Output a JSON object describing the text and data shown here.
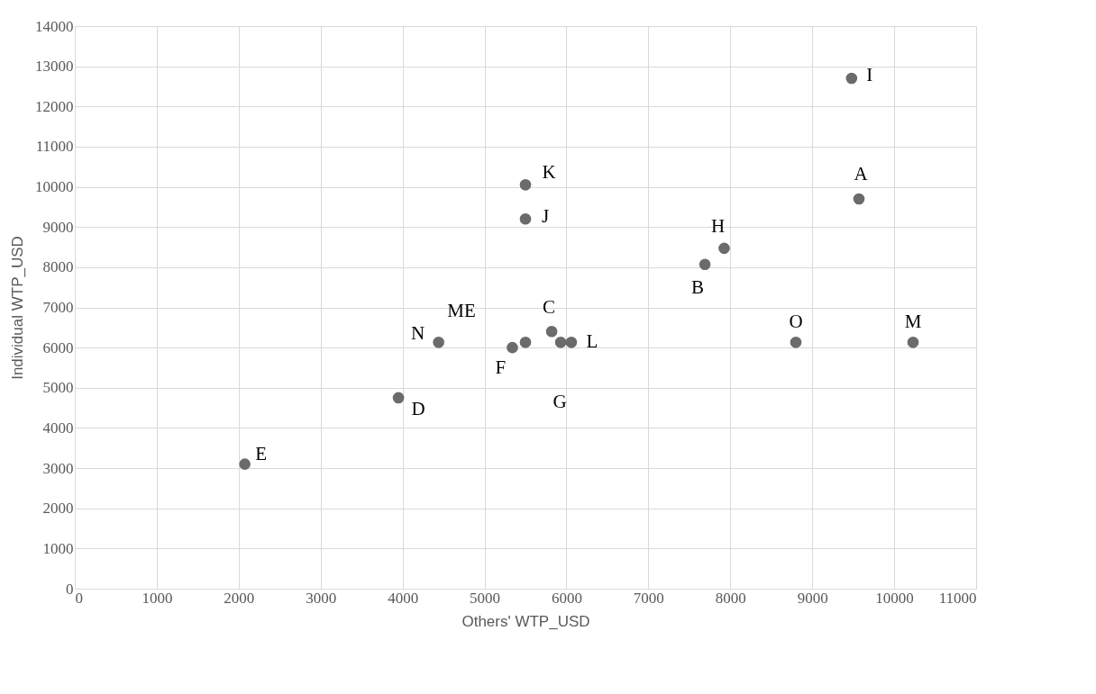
{
  "chart_data": {
    "type": "scatter",
    "xlabel": "Others' WTP_USD",
    "ylabel": "Individual WTP_USD",
    "x": [
      9480,
      9570,
      5500,
      5500,
      7925,
      7690,
      5820,
      4440,
      5500,
      5340,
      5930,
      6060,
      8800,
      10230,
      3950,
      2075
    ],
    "series": [
      {
        "color": "#6b6b6b",
        "values": [
          12700,
          9700,
          10050,
          9200,
          8470,
          8070,
          6400,
          6130,
          6130,
          6000,
          6130,
          6130,
          6130,
          6130,
          4750,
          3100
        ]
      }
    ],
    "xlim": [
      0,
      11000
    ],
    "xticks": [
      0,
      1000,
      2000,
      3000,
      4000,
      5000,
      6000,
      7000,
      8000,
      9000,
      10000,
      11000
    ],
    "ylim": [
      0,
      14000
    ],
    "yticks": [
      0,
      1000,
      2000,
      3000,
      4000,
      5000,
      6000,
      7000,
      8000,
      9000,
      10000,
      11000,
      12000,
      13000,
      14000
    ],
    "grid": true,
    "marker": "circle",
    "annotations": [
      {
        "text": "I",
        "x": 9480,
        "y": 12700
      },
      {
        "text": "A",
        "x": 9570,
        "y": 9700
      },
      {
        "text": "K",
        "x": 5500,
        "y": 10050
      },
      {
        "text": "J",
        "x": 5500,
        "y": 9200
      },
      {
        "text": "H",
        "x": 7925,
        "y": 8470
      },
      {
        "text": "B",
        "x": 7690,
        "y": 8070
      },
      {
        "text": "ME",
        "x": 5500,
        "y": 6130
      },
      {
        "text": "C",
        "x": 5820,
        "y": 6400
      },
      {
        "text": "N",
        "x": 4440,
        "y": 6130
      },
      {
        "text": "L",
        "x": 6060,
        "y": 6130
      },
      {
        "text": "O",
        "x": 8800,
        "y": 6130
      },
      {
        "text": "M",
        "x": 10230,
        "y": 6130
      },
      {
        "text": "F",
        "x": 5340,
        "y": 6000
      },
      {
        "text": "G",
        "x": 5930,
        "y": 6130
      },
      {
        "text": "D",
        "x": 3950,
        "y": 4750
      },
      {
        "text": "E",
        "x": 2075,
        "y": 3100
      }
    ]
  }
}
